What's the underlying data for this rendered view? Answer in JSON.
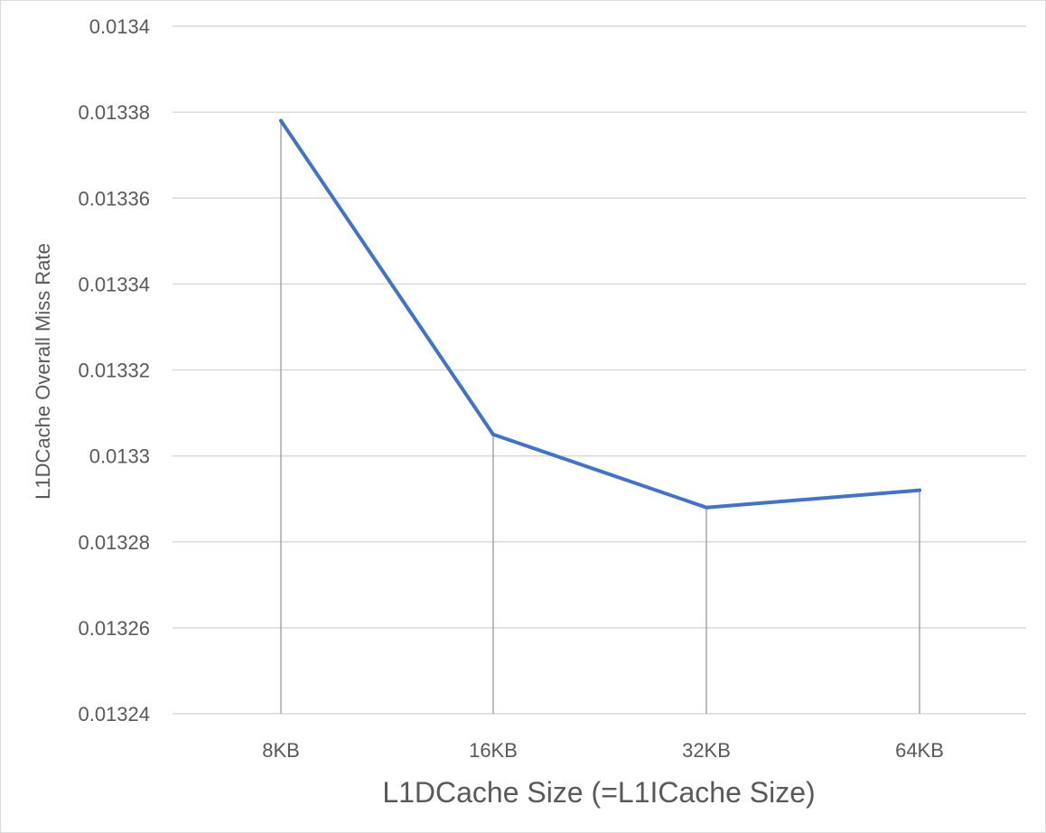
{
  "chart_data": {
    "type": "line",
    "title": "",
    "xlabel": "L1DCache Size (=L1ICache Size)",
    "ylabel": "L1DCache Overall Miss Rate",
    "categories": [
      "8KB",
      "16KB",
      "32KB",
      "64KB"
    ],
    "series": [
      {
        "values": [
          0.013378,
          0.013305,
          0.013288,
          0.013292
        ],
        "color": "#4472c4"
      }
    ],
    "ylim": [
      0.01324,
      0.0134
    ],
    "yticks": [
      0.01324,
      0.01326,
      0.01328,
      0.0133,
      0.01332,
      0.01334,
      0.01336,
      0.01338,
      0.0134
    ],
    "ytick_labels": [
      "0.01324",
      "0.01326",
      "0.01328",
      "0.0133",
      "0.01332",
      "0.01334",
      "0.01336",
      "0.01338",
      "0.0134"
    ],
    "grid": true,
    "drop_lines": true,
    "legend": "none",
    "colors": {
      "line": "#4472c4",
      "grid": "#d9d9d9",
      "drop_line": "#a6a6a6",
      "text": "#595959"
    }
  }
}
